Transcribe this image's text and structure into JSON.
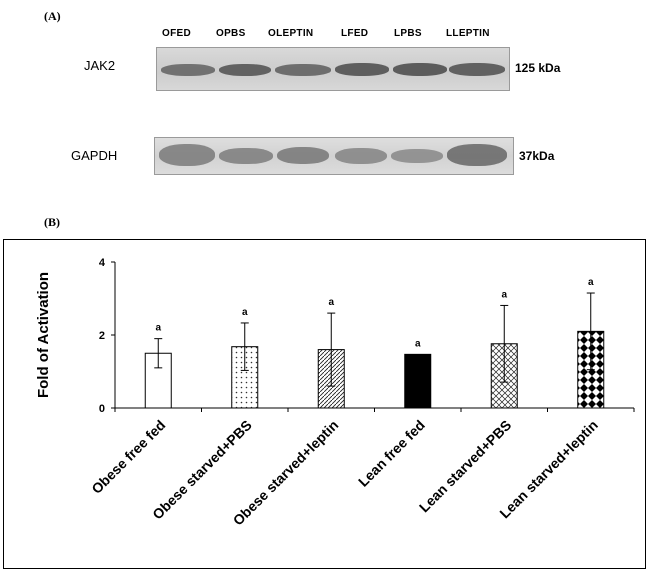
{
  "panel_a": {
    "label": "(A)",
    "lanes": [
      "OFED",
      "OPBS",
      "OLEPTIN",
      "LFED",
      "LPBS",
      "LLEPTIN"
    ],
    "blots": [
      {
        "name": "JAK2",
        "size": "125 kDa"
      },
      {
        "name": "GAPDH",
        "size": "37kDa"
      }
    ]
  },
  "panel_b": {
    "label": "(B)"
  },
  "chart_data": {
    "type": "bar",
    "title": "",
    "xlabel": "",
    "ylabel": "Fold of Activation",
    "ylim": [
      0,
      4
    ],
    "yticks": [
      "0",
      "2",
      "4"
    ],
    "categories": [
      "Obese free fed",
      "Obese starved+PBS",
      "Obese starved+leptin",
      "Lean free fed",
      "Lean starved+PBS",
      "Lean starved+leptin"
    ],
    "values": [
      1.5,
      1.68,
      1.6,
      1.47,
      1.76,
      2.1
    ],
    "error_bars": [
      0.4,
      0.65,
      1.0,
      0,
      1.05,
      1.05
    ],
    "significance_labels": [
      "a",
      "a",
      "a",
      "a",
      "a",
      "a"
    ],
    "fill_patterns": [
      "white",
      "dots",
      "diagonal-lines",
      "solid-black",
      "crosshatch",
      "diamonds"
    ],
    "grid": false,
    "legend": "none"
  }
}
